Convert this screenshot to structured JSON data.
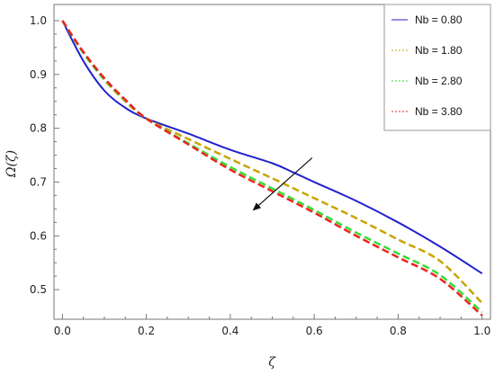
{
  "chart_data": {
    "type": "line",
    "title": "",
    "xlabel": "ζ",
    "ylabel": "Ω(ζ)",
    "xlim": [
      -0.02,
      1.02
    ],
    "ylim": [
      0.445,
      1.03
    ],
    "xticks": [
      {
        "value": 0.0,
        "label": "0.0"
      },
      {
        "value": 0.2,
        "label": "0.2"
      },
      {
        "value": 0.4,
        "label": "0.4"
      },
      {
        "value": 0.6,
        "label": "0.6"
      },
      {
        "value": 0.8,
        "label": "0.8"
      },
      {
        "value": 1.0,
        "label": "1.0"
      }
    ],
    "yticks": [
      {
        "value": 0.5,
        "label": "0.5"
      },
      {
        "value": 0.6,
        "label": "0.6"
      },
      {
        "value": 0.7,
        "label": "0.7"
      },
      {
        "value": 0.8,
        "label": "0.8"
      },
      {
        "value": 0.9,
        "label": "0.9"
      },
      {
        "value": 1.0,
        "label": "1.0"
      }
    ],
    "grid": false,
    "legend_position": "top-right",
    "series": [
      {
        "name": "Nb = 0.80",
        "color": "#2222cc",
        "dash": "solid",
        "x": [
          0.0,
          0.05,
          0.1,
          0.15,
          0.2,
          0.3,
          0.4,
          0.5,
          0.55,
          0.6,
          0.7,
          0.8,
          0.9,
          1.0
        ],
        "y": [
          1.0,
          0.925,
          0.87,
          0.838,
          0.818,
          0.79,
          0.76,
          0.735,
          0.718,
          0.7,
          0.665,
          0.625,
          0.58,
          0.53
        ]
      },
      {
        "name": "Nb = 1.80",
        "color": "#c8a400",
        "dash": "dashed",
        "x": [
          0.0,
          0.05,
          0.1,
          0.15,
          0.2,
          0.3,
          0.4,
          0.5,
          0.6,
          0.7,
          0.8,
          0.9,
          1.0
        ],
        "y": [
          1.0,
          0.94,
          0.89,
          0.85,
          0.818,
          0.78,
          0.743,
          0.707,
          0.67,
          0.633,
          0.593,
          0.553,
          0.475
        ]
      },
      {
        "name": "Nb = 2.80",
        "color": "#33dd33",
        "dash": "dashed",
        "x": [
          0.0,
          0.05,
          0.1,
          0.15,
          0.2,
          0.3,
          0.4,
          0.5,
          0.6,
          0.7,
          0.8,
          0.9,
          1.0
        ],
        "y": [
          1.0,
          0.94,
          0.891,
          0.852,
          0.818,
          0.772,
          0.728,
          0.688,
          0.648,
          0.606,
          0.567,
          0.527,
          0.458
        ]
      },
      {
        "name": "Nb = 3.80",
        "color": "#ee2222",
        "dash": "dashed",
        "x": [
          0.0,
          0.05,
          0.1,
          0.15,
          0.2,
          0.3,
          0.4,
          0.5,
          0.6,
          0.7,
          0.8,
          0.9,
          1.0
        ],
        "y": [
          1.0,
          0.942,
          0.893,
          0.853,
          0.818,
          0.77,
          0.723,
          0.683,
          0.643,
          0.6,
          0.56,
          0.52,
          0.452
        ]
      }
    ],
    "annotation": {
      "type": "arrow",
      "from": [
        0.595,
        0.745
      ],
      "to": [
        0.455,
        0.648
      ]
    }
  }
}
